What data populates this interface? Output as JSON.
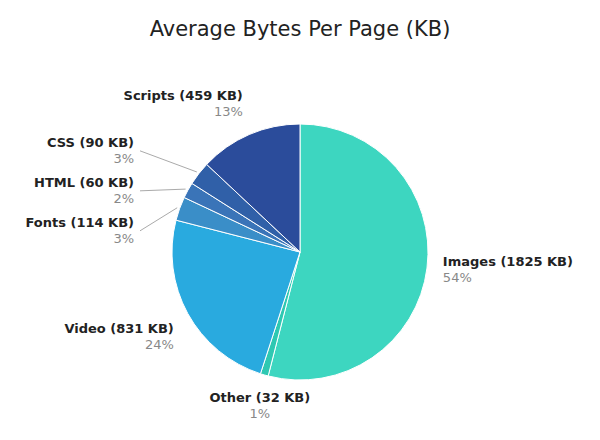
{
  "chart_data": {
    "type": "pie",
    "title": "Average Bytes Per Page (KB)",
    "categories": [
      "Images (1825 KB)",
      "Other (32 KB)",
      "Video (831 KB)",
      "Fonts (114 KB)",
      "HTML (60 KB)",
      "CSS (90 KB)",
      "Scripts (459 KB)"
    ],
    "values": [
      54,
      1,
      24,
      3,
      2,
      3,
      13
    ],
    "value_labels": [
      "54%",
      "1%",
      "24%",
      "3%",
      "2%",
      "3%",
      "13%"
    ],
    "colors": [
      "#3DD6C0",
      "#2EC8B2",
      "#29AADF",
      "#3A8EC8",
      "#3A74B8",
      "#3060A8",
      "#2B4C9B"
    ],
    "data_labels": true
  }
}
